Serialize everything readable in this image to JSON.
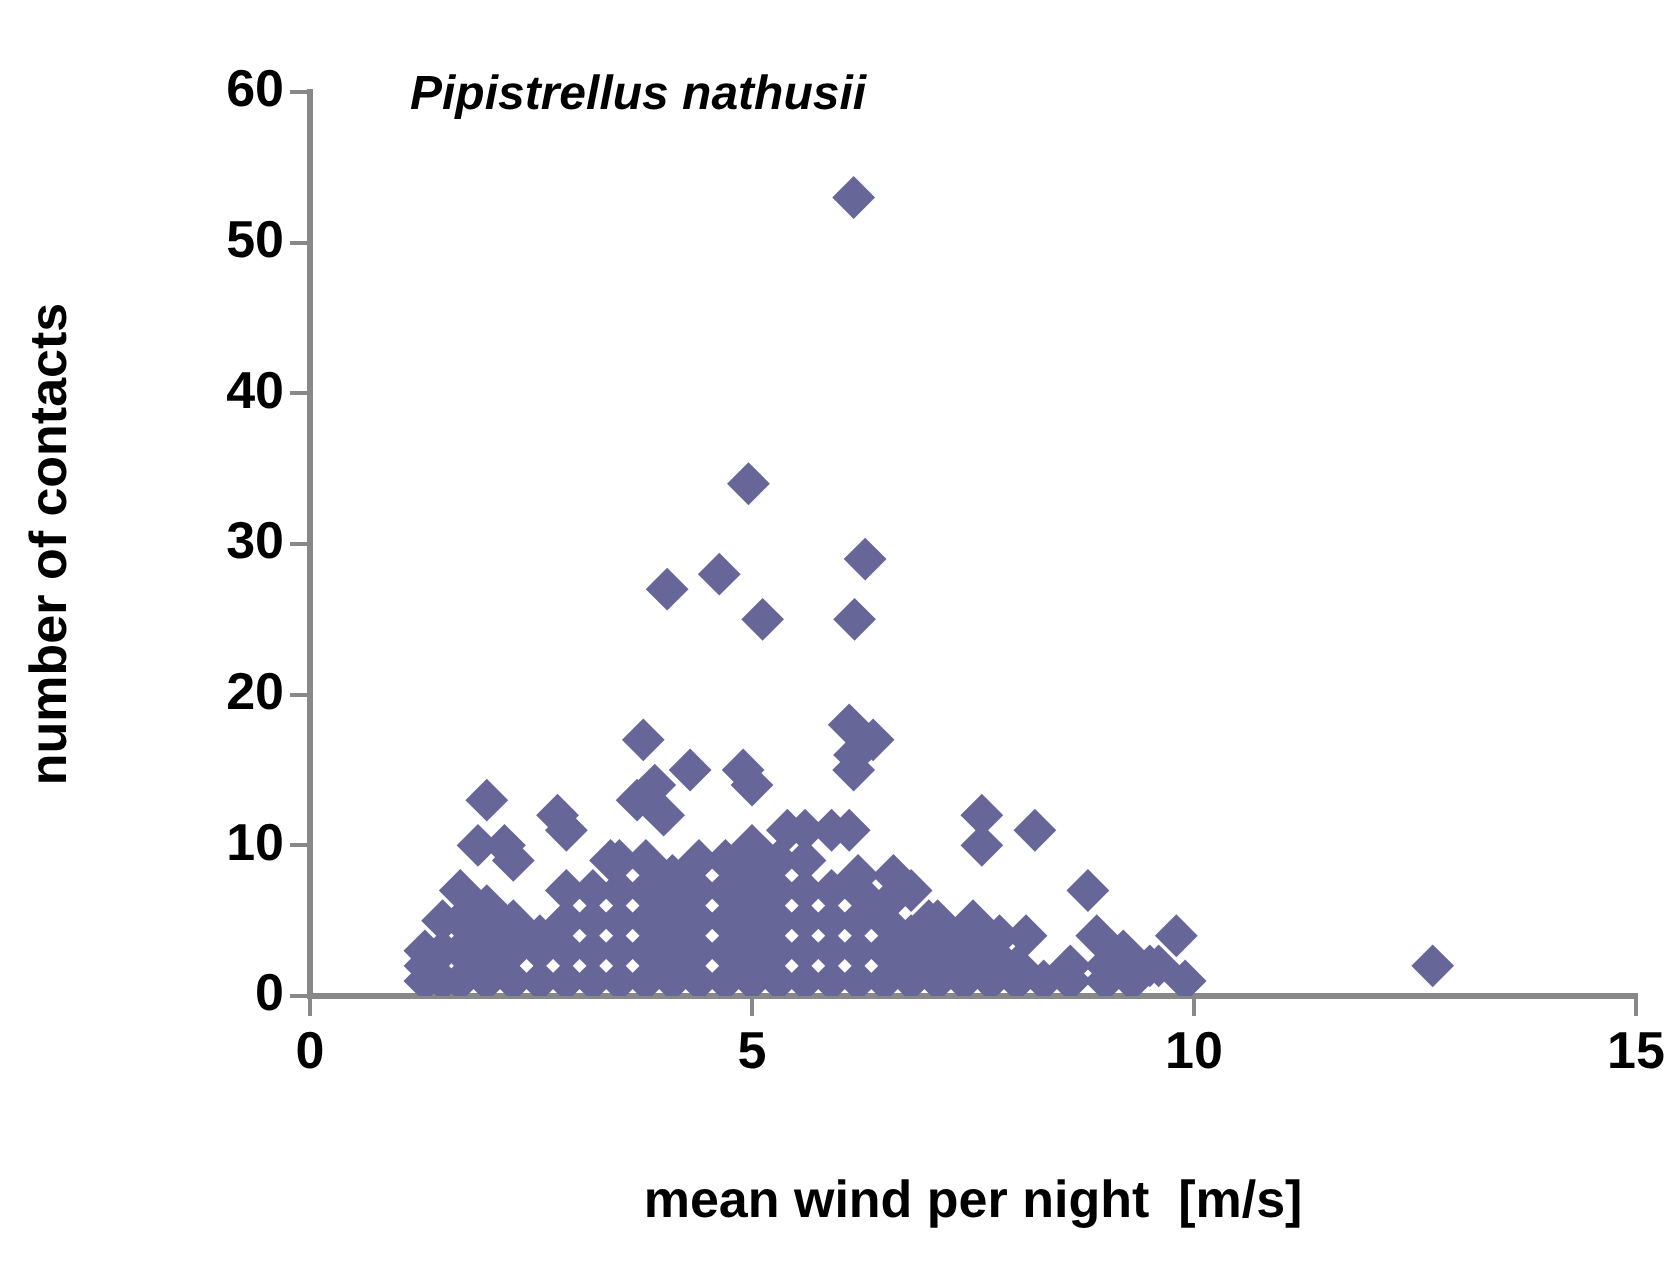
{
  "chart_data": {
    "type": "scatter",
    "title": "Pipistrellus nathusii",
    "xlabel": "mean wind per night  [m/s]",
    "ylabel": "number of contacts",
    "xlim": [
      0,
      15
    ],
    "xticks": [
      0,
      5,
      10,
      15
    ],
    "ylim": [
      0,
      60
    ],
    "yticks": [
      0,
      10,
      20,
      30,
      40,
      50,
      60
    ],
    "grid": false,
    "legend": false,
    "marker": "diamond",
    "series": [
      {
        "color": "#666699",
        "x": [
          1.3,
          1.3,
          1.3,
          1.5,
          1.5,
          1.5,
          1.7,
          1.7,
          1.7,
          1.7,
          2.0,
          2.0,
          2.0,
          2.0,
          2.3,
          2.3,
          2.3,
          2.6,
          2.6,
          2.6,
          2.9,
          2.9,
          2.9,
          2.9,
          3.2,
          3.2,
          3.2,
          3.2,
          3.5,
          3.5,
          3.5,
          3.5,
          3.5,
          3.8,
          3.8,
          3.8,
          3.8,
          3.8,
          4.1,
          4.1,
          4.1,
          4.1,
          4.1,
          4.4,
          4.4,
          4.4,
          4.4,
          4.4,
          4.7,
          4.7,
          4.7,
          4.7,
          4.7,
          5.0,
          5.0,
          5.0,
          5.0,
          5.0,
          5.0,
          5.3,
          5.3,
          5.3,
          5.3,
          5.3,
          5.6,
          5.6,
          5.6,
          5.6,
          5.6,
          5.9,
          5.9,
          5.9,
          5.9,
          6.2,
          6.2,
          6.2,
          6.2,
          6.5,
          6.5,
          6.5,
          6.5,
          6.8,
          6.8,
          6.8,
          6.8,
          7.1,
          7.1,
          7.1,
          7.4,
          7.4,
          7.4,
          7.7,
          7.7,
          8.0,
          8.0,
          8.3,
          8.6,
          9.0,
          9.0,
          9.3,
          9.6,
          6.15,
          4.96,
          4.63,
          4.04,
          5.12,
          6.28,
          6.16,
          3.77,
          6.1,
          6.37,
          6.16,
          6.15,
          4.3,
          4.9,
          5.0,
          2.0,
          1.9,
          2.2,
          2.3,
          2.8,
          2.9,
          3.4,
          3.7,
          3.9,
          4.0,
          5.4,
          5.6,
          5.9,
          6.1,
          7.6,
          7.6,
          8.2,
          8.8,
          8.9,
          9.2,
          9.8,
          9.9,
          12.7,
          6.2,
          6.6,
          7.0,
          7.5,
          7.8,
          8.1,
          8.6,
          9.5
        ],
        "values": [
          1,
          2,
          3,
          1,
          3,
          5,
          1,
          3,
          5,
          7,
          1,
          2,
          4,
          6,
          1,
          3,
          5,
          1,
          3,
          4,
          1,
          3,
          5,
          7,
          1,
          3,
          5,
          7,
          1,
          3,
          5,
          7,
          9,
          1,
          3,
          5,
          7,
          9,
          1,
          2,
          4,
          6,
          8,
          1,
          3,
          5,
          7,
          9,
          1,
          3,
          5,
          7,
          9,
          1,
          2,
          4,
          6,
          8,
          10,
          1,
          3,
          5,
          7,
          9,
          1,
          3,
          5,
          7,
          9,
          1,
          3,
          5,
          7,
          1,
          3,
          5,
          7,
          1,
          3,
          5,
          6,
          1,
          2,
          4,
          7,
          1,
          3,
          5,
          1,
          2,
          4,
          1,
          3,
          1,
          2,
          1,
          1,
          1,
          2,
          1,
          2,
          53,
          34,
          28,
          27,
          25,
          29,
          25,
          17,
          18,
          17,
          16,
          15,
          15,
          15,
          14,
          13,
          10,
          10,
          9,
          12,
          11,
          9,
          13,
          14,
          12,
          11,
          11,
          11,
          11,
          12,
          10,
          11,
          7,
          4,
          3,
          4,
          1,
          2,
          8,
          8,
          5,
          5,
          4,
          4,
          2,
          2
        ]
      }
    ]
  }
}
